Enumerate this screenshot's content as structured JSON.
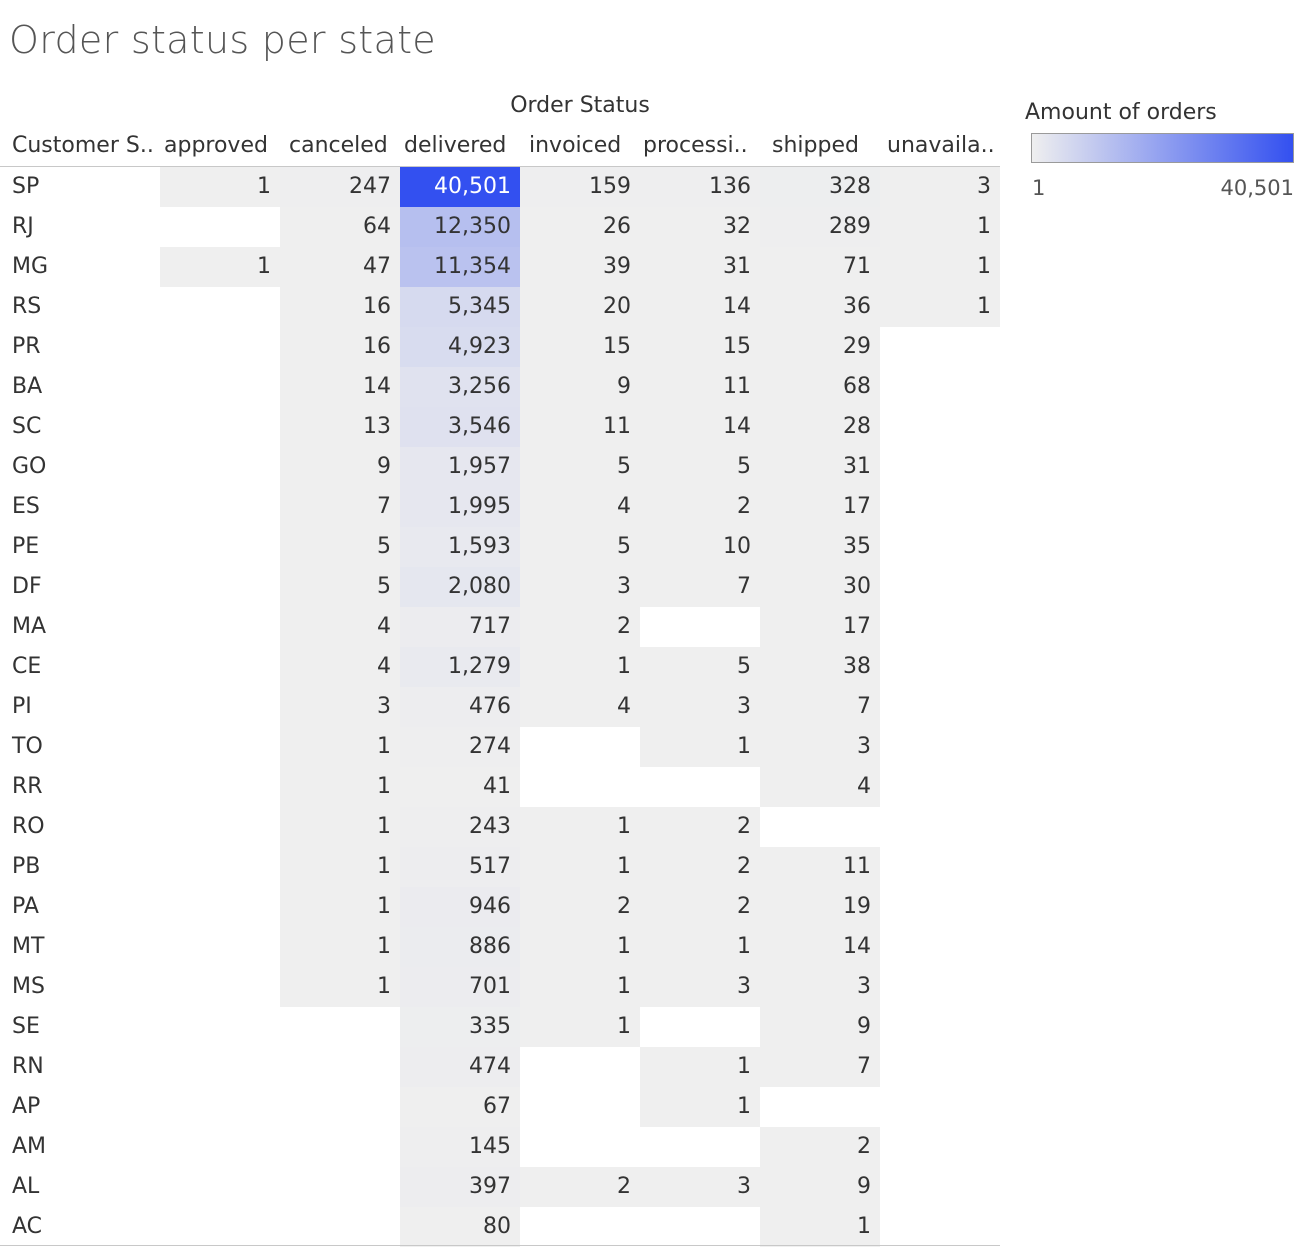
{
  "title": "Order status per state",
  "chart_data": {
    "type": "heatmap",
    "title": "Order status per state",
    "column_group_label": "Order Status",
    "row_header_label": "Customer S..",
    "columns": [
      "approved",
      "canceled",
      "delivered",
      "invoiced",
      "processi..",
      "shipped",
      "unavaila.."
    ],
    "rows": [
      {
        "state": "SP",
        "values": [
          1,
          247,
          40501,
          159,
          136,
          328,
          3
        ]
      },
      {
        "state": "RJ",
        "values": [
          null,
          64,
          12350,
          26,
          32,
          289,
          1
        ]
      },
      {
        "state": "MG",
        "values": [
          1,
          47,
          11354,
          39,
          31,
          71,
          1
        ]
      },
      {
        "state": "RS",
        "values": [
          null,
          16,
          5345,
          20,
          14,
          36,
          1
        ]
      },
      {
        "state": "PR",
        "values": [
          null,
          16,
          4923,
          15,
          15,
          29,
          null
        ]
      },
      {
        "state": "BA",
        "values": [
          null,
          14,
          3256,
          9,
          11,
          68,
          null
        ]
      },
      {
        "state": "SC",
        "values": [
          null,
          13,
          3546,
          11,
          14,
          28,
          null
        ]
      },
      {
        "state": "GO",
        "values": [
          null,
          9,
          1957,
          5,
          5,
          31,
          null
        ]
      },
      {
        "state": "ES",
        "values": [
          null,
          7,
          1995,
          4,
          2,
          17,
          null
        ]
      },
      {
        "state": "PE",
        "values": [
          null,
          5,
          1593,
          5,
          10,
          35,
          null
        ]
      },
      {
        "state": "DF",
        "values": [
          null,
          5,
          2080,
          3,
          7,
          30,
          null
        ]
      },
      {
        "state": "MA",
        "values": [
          null,
          4,
          717,
          2,
          null,
          17,
          null
        ]
      },
      {
        "state": "CE",
        "values": [
          null,
          4,
          1279,
          1,
          5,
          38,
          null
        ]
      },
      {
        "state": "PI",
        "values": [
          null,
          3,
          476,
          4,
          3,
          7,
          null
        ]
      },
      {
        "state": "TO",
        "values": [
          null,
          1,
          274,
          null,
          1,
          3,
          null
        ]
      },
      {
        "state": "RR",
        "values": [
          null,
          1,
          41,
          null,
          null,
          4,
          null
        ]
      },
      {
        "state": "RO",
        "values": [
          null,
          1,
          243,
          1,
          2,
          null,
          null
        ]
      },
      {
        "state": "PB",
        "values": [
          null,
          1,
          517,
          1,
          2,
          11,
          null
        ]
      },
      {
        "state": "PA",
        "values": [
          null,
          1,
          946,
          2,
          2,
          19,
          null
        ]
      },
      {
        "state": "MT",
        "values": [
          null,
          1,
          886,
          1,
          1,
          14,
          null
        ]
      },
      {
        "state": "MS",
        "values": [
          null,
          1,
          701,
          1,
          3,
          3,
          null
        ]
      },
      {
        "state": "SE",
        "values": [
          null,
          null,
          335,
          1,
          null,
          9,
          null
        ]
      },
      {
        "state": "RN",
        "values": [
          null,
          null,
          474,
          null,
          1,
          7,
          null
        ]
      },
      {
        "state": "AP",
        "values": [
          null,
          null,
          67,
          null,
          1,
          null,
          null
        ]
      },
      {
        "state": "AM",
        "values": [
          null,
          null,
          145,
          null,
          null,
          2,
          null
        ]
      },
      {
        "state": "AL",
        "values": [
          null,
          null,
          397,
          2,
          3,
          9,
          null
        ]
      },
      {
        "state": "AC",
        "values": [
          null,
          null,
          80,
          null,
          null,
          1,
          null
        ]
      }
    ],
    "legend": {
      "title": "Amount of orders",
      "min_label": "1",
      "max_label": "40,501",
      "min": 1,
      "max": 40501,
      "color_low": "#efefef",
      "color_high": "#3350f0"
    },
    "legend_placement": "top-right",
    "grid": false
  }
}
